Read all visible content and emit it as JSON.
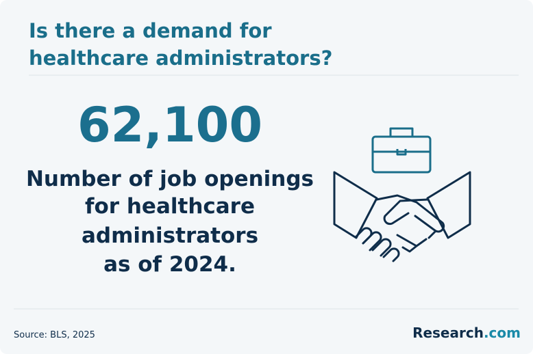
{
  "header": {
    "title_lines": [
      "Is there a demand for",
      "healthcare administrators?"
    ]
  },
  "stat": {
    "value": "62,100",
    "description_lines": [
      "Number of job openings",
      "for healthcare",
      "administrators",
      "as of 2024."
    ]
  },
  "footer": {
    "source": "Source: BLS, 2025",
    "logo": {
      "name": "Research",
      "suffix": ".com"
    }
  }
}
